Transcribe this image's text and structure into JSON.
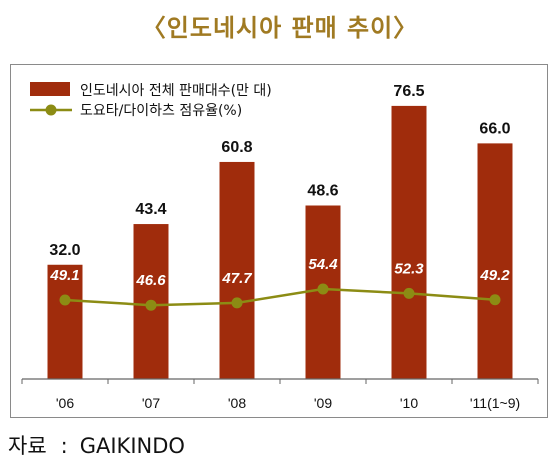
{
  "title": "〈인도네시아 판매 추이〉",
  "source": {
    "label": "자료",
    "separator": ":",
    "value": "GAIKINDO"
  },
  "colors": {
    "bar": "#a02c0c",
    "line": "#8c8c14",
    "title": "#a07a22",
    "axis": "#666666"
  },
  "chart_data": {
    "type": "bar",
    "categories": [
      "'06",
      "'07",
      "'08",
      "'09",
      "'10",
      "'11(1~9)"
    ],
    "series": [
      {
        "name": "인도네시아 전체 판매대수(만 대)",
        "type": "bar",
        "values": [
          32.0,
          43.4,
          60.8,
          48.6,
          76.5,
          66.0
        ],
        "labels": [
          "32.0",
          "43.4",
          "60.8",
          "48.6",
          "76.5",
          "66.0"
        ]
      },
      {
        "name": "도요타/다이하츠 점유율(%)",
        "type": "line",
        "values": [
          49.1,
          46.6,
          47.7,
          54.4,
          52.3,
          49.2
        ],
        "labels": [
          "49.1",
          "46.6",
          "47.7",
          "54.4",
          "52.3",
          "49.2"
        ]
      }
    ],
    "legend": "top-left",
    "grid": false
  }
}
